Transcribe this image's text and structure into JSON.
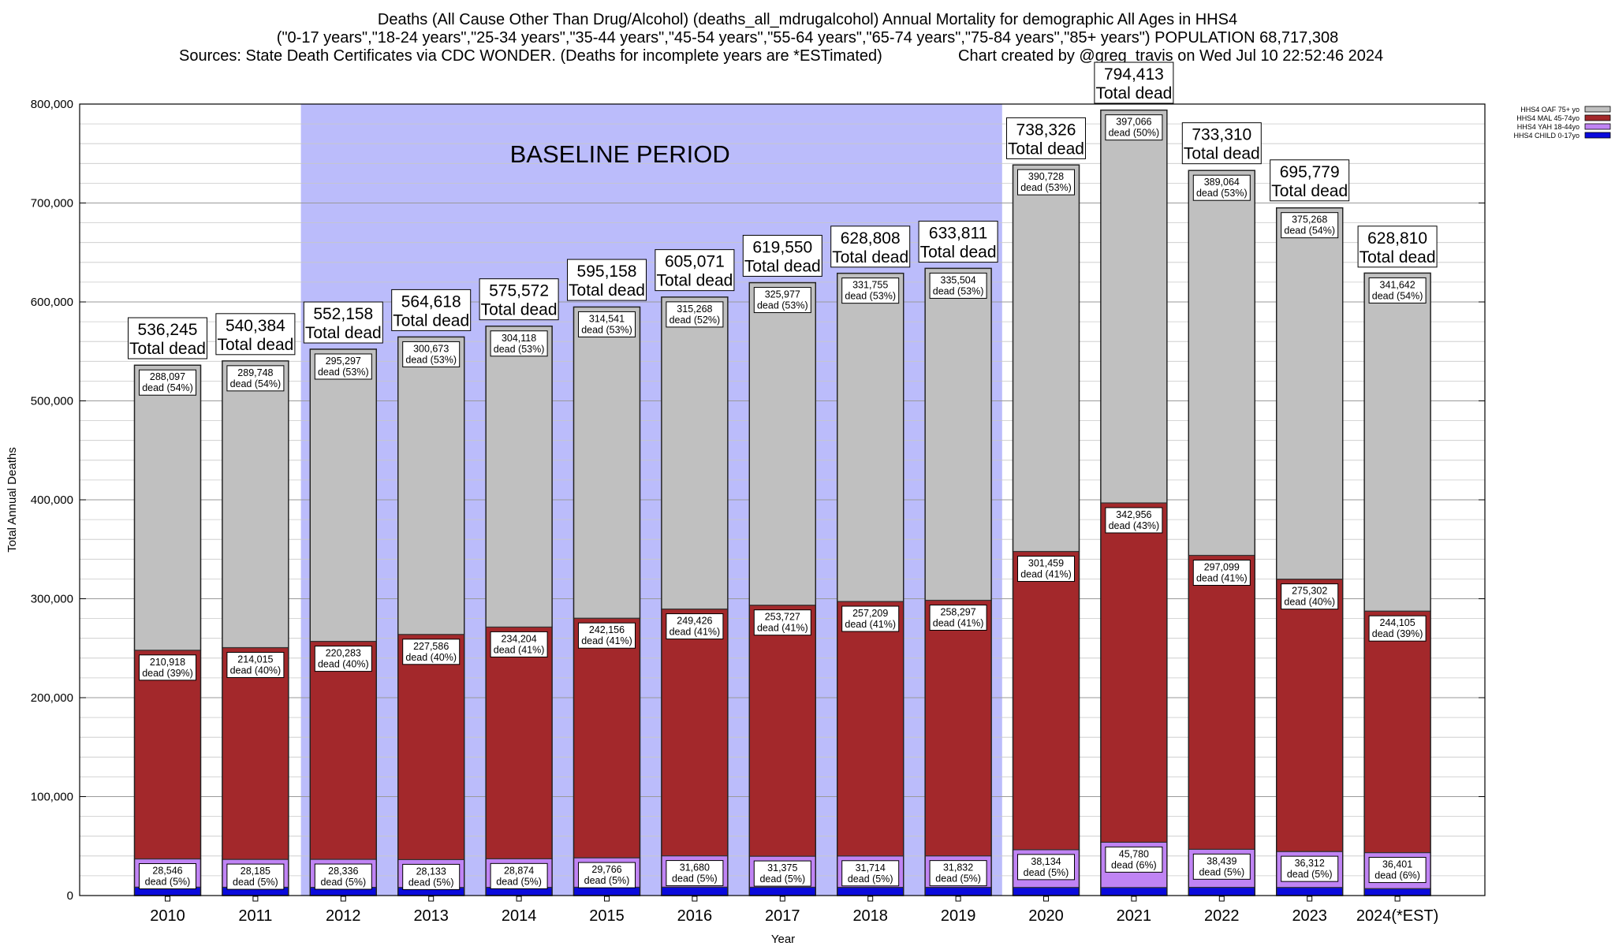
{
  "header": {
    "title_line1": "Deaths (All Cause Other Than Drug/Alcohol) (deaths_all_mdrugalcohol) Annual Mortality for demographic All Ages in HHS4",
    "title_line2": "(\"0-17 years\",\"18-24 years\",\"25-34 years\",\"35-44 years\",\"45-54 years\",\"55-64 years\",\"65-74 years\",\"75-84 years\",\"85+ years\") POPULATION 68,717,308",
    "sources": "Sources: State Death Certificates via CDC WONDER. (Deaths for incomplete years are *ESTimated)",
    "credit": "Chart created by @greg_travis on Wed Jul 10 22:52:46 2024"
  },
  "chart_data": {
    "type": "bar",
    "stacked": true,
    "ylabel": "Total Annual Deaths",
    "xlabel": "Year",
    "ylim": [
      0,
      800000
    ],
    "yticks": [
      0,
      100000,
      200000,
      300000,
      400000,
      500000,
      600000,
      700000,
      800000
    ],
    "ytick_labels": [
      "0",
      "100,000",
      "200,000",
      "300,000",
      "400,000",
      "500,000",
      "600,000",
      "700,000",
      "800,000"
    ],
    "grid": true,
    "legend_position": "top-right",
    "categories": [
      "2010",
      "2011",
      "2012",
      "2013",
      "2014",
      "2015",
      "2016",
      "2017",
      "2018",
      "2019",
      "2020",
      "2021",
      "2022",
      "2023",
      "2024(*EST)"
    ],
    "series": [
      {
        "name": "HHS4 CHILD 0-17yo",
        "color": "#0a0adc",
        "values": [
          8500,
          8400,
          8300,
          8200,
          8300,
          8400,
          8500,
          8400,
          8300,
          8300,
          8200,
          8100,
          8300,
          8200,
          7000
        ]
      },
      {
        "name": "HHS4 YAH 18-44yo",
        "color": "#c084f4",
        "values": [
          28546,
          28185,
          28336,
          28133,
          28874,
          29766,
          31680,
          31375,
          31714,
          31832,
          38134,
          45780,
          38439,
          36312,
          36401
        ]
      },
      {
        "name": "HHS4 MAL 45-74yo",
        "color": "#a3282b",
        "values": [
          210918,
          214015,
          220283,
          227586,
          234204,
          242156,
          249426,
          253727,
          257209,
          258297,
          301459,
          342956,
          297099,
          275302,
          244105
        ]
      },
      {
        "name": "HHS4 OAF 75+ yo",
        "color": "#c0c0c0",
        "values": [
          288097,
          289748,
          295297,
          300673,
          304118,
          314541,
          315268,
          325977,
          331755,
          335504,
          390728,
          397066,
          389064,
          375268,
          341642
        ]
      }
    ],
    "segment_labels": {
      "yah_values": [
        "28,546",
        "28,185",
        "28,336",
        "28,133",
        "28,874",
        "29,766",
        "31,680",
        "31,375",
        "31,714",
        "31,832",
        "38,134",
        "45,780",
        "38,439",
        "36,312",
        "36,401"
      ],
      "yah_pct": [
        "dead (5%)",
        "dead (5%)",
        "dead (5%)",
        "dead (5%)",
        "dead (5%)",
        "dead (5%)",
        "dead (5%)",
        "dead (5%)",
        "dead (5%)",
        "dead (5%)",
        "dead (5%)",
        "dead (6%)",
        "dead (5%)",
        "dead (5%)",
        "dead (6%)"
      ],
      "mal_values": [
        "210,918",
        "214,015",
        "220,283",
        "227,586",
        "234,204",
        "242,156",
        "249,426",
        "253,727",
        "257,209",
        "258,297",
        "301,459",
        "342,956",
        "297,099",
        "275,302",
        "244,105"
      ],
      "mal_pct": [
        "dead (39%)",
        "dead (40%)",
        "dead (40%)",
        "dead (40%)",
        "dead (41%)",
        "dead (41%)",
        "dead (41%)",
        "dead (41%)",
        "dead (41%)",
        "dead (41%)",
        "dead (41%)",
        "dead (43%)",
        "dead (41%)",
        "dead (40%)",
        "dead (39%)"
      ],
      "oaf_values": [
        "288,097",
        "289,748",
        "295,297",
        "300,673",
        "304,118",
        "314,541",
        "315,268",
        "325,977",
        "331,755",
        "335,504",
        "390,728",
        "397,066",
        "389,064",
        "375,268",
        "341,642"
      ],
      "oaf_pct": [
        "dead (54%)",
        "dead (54%)",
        "dead (53%)",
        "dead (53%)",
        "dead (53%)",
        "dead (53%)",
        "dead (52%)",
        "dead (53%)",
        "dead (53%)",
        "dead (53%)",
        "dead (53%)",
        "dead (50%)",
        "dead (53%)",
        "dead (54%)",
        "dead (54%)"
      ]
    },
    "totals": [
      536245,
      540384,
      552158,
      564618,
      575572,
      595158,
      605071,
      619550,
      628808,
      633811,
      738326,
      794413,
      733310,
      695779,
      628810
    ],
    "total_labels": [
      "536,245",
      "540,384",
      "552,158",
      "564,618",
      "575,572",
      "595,158",
      "605,071",
      "619,550",
      "628,808",
      "633,811",
      "738,326",
      "794,413",
      "733,310",
      "695,779",
      "628,810"
    ],
    "total_suffix": "Total dead",
    "baseline": {
      "label": "BASELINE PERIOD",
      "from": "2012",
      "to": "2019",
      "color": "#bbbcfb"
    }
  }
}
